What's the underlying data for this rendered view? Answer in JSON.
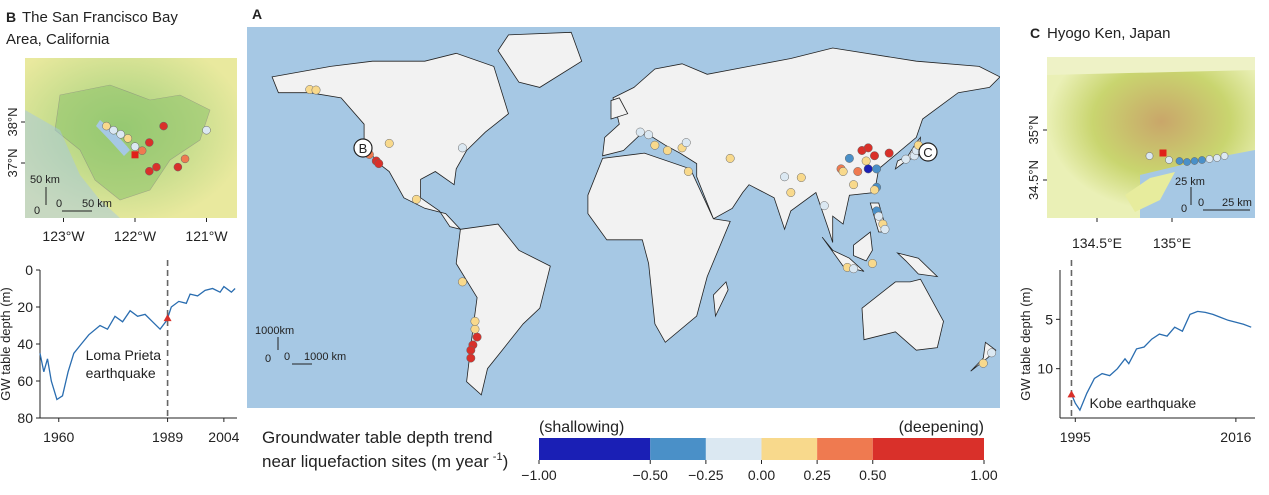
{
  "chart_data": [
    {
      "type": "line",
      "ylabel": "GW table depth (m)",
      "x": [
        1955,
        1956,
        1957,
        1958,
        1959.5,
        1961,
        1962.5,
        1964,
        1966,
        1968,
        1971,
        1973,
        1975,
        1977,
        1979,
        1981,
        1983,
        1985,
        1987,
        1988.5,
        1989,
        1990,
        1992,
        1994,
        1995,
        1997,
        1999,
        2001,
        2003,
        2004,
        2006,
        2007
      ],
      "values": [
        45,
        55,
        48,
        60,
        70,
        68,
        55,
        45,
        40,
        35,
        30,
        32,
        25,
        28,
        22,
        25,
        24,
        28,
        32,
        28,
        26,
        20,
        17,
        18,
        13,
        14,
        11,
        10,
        12,
        9,
        12,
        10
      ],
      "color": "#2a6db0",
      "xlim": [
        1955,
        2007.5
      ],
      "ylim": [
        0,
        80
      ],
      "y_inverted": true,
      "xticks": [
        1960,
        1989,
        2004
      ],
      "yticks": [
        0,
        20,
        40,
        60,
        80
      ],
      "event_x": 1989,
      "event_label": [
        "Loma Prieta",
        "earthquake"
      ],
      "marker": {
        "x": 1989,
        "y": 26,
        "color": "#d9302a"
      }
    },
    {
      "type": "line",
      "ylabel": "GW table depth (m)",
      "x": [
        1994.5,
        1995,
        1995.6,
        1996.5,
        1997.5,
        1998.5,
        1999.5,
        2000.5,
        2001.5,
        2002,
        2003,
        2004,
        2005,
        2006,
        2007,
        2008,
        2009,
        2010,
        2011,
        2012,
        2013,
        2014,
        2015,
        2016,
        2017,
        2018
      ],
      "values": [
        12.6,
        13.5,
        14.2,
        12.5,
        11,
        10.5,
        10.7,
        10,
        9,
        9.5,
        8,
        7.8,
        7,
        6.5,
        6.7,
        5.8,
        6.2,
        4.5,
        4.2,
        4.3,
        4.5,
        4.8,
        5.1,
        5.3,
        5.5,
        5.8
      ],
      "color": "#2a6db0",
      "xlim": [
        1993,
        2018.5
      ],
      "ylim": [
        0,
        15
      ],
      "y_inverted": true,
      "xticks": [
        1995,
        2016
      ],
      "yticks": [
        5,
        10
      ],
      "event_x": 1994.5,
      "event_label": [
        "Kobe earthquake"
      ],
      "marker": {
        "x": 1994.5,
        "y": 12.6,
        "color": "#d9302a"
      }
    }
  ],
  "panel_a": {
    "label": "A",
    "marker_b": "B",
    "marker_c": "C",
    "scale": {
      "vertical": "1000km",
      "zero_v": "0",
      "zero_h": "0",
      "horizontal": "1000 km"
    },
    "sites": [
      {
        "lon": -122.3,
        "lat": 37.8,
        "trend": 0.6
      },
      {
        "lon": -122,
        "lat": 37,
        "trend": 0.8
      },
      {
        "lon": -121.5,
        "lat": 36.5,
        "trend": 0.4
      },
      {
        "lon": -118.2,
        "lat": 34,
        "trend": 0.9
      },
      {
        "lon": -117,
        "lat": 33,
        "trend": 0.6
      },
      {
        "lon": -123,
        "lat": 39,
        "trend": 0.1
      },
      {
        "lon": -150,
        "lat": 61.2,
        "trend": 0.1
      },
      {
        "lon": -147,
        "lat": 61,
        "trend": 0.2
      },
      {
        "lon": -112,
        "lat": 40.7,
        "trend": 0.1
      },
      {
        "lon": -77,
        "lat": 39,
        "trend": -0.1
      },
      {
        "lon": -99,
        "lat": 19.4,
        "trend": 0.1
      },
      {
        "lon": -70,
        "lat": -33,
        "trend": 0.6
      },
      {
        "lon": -72,
        "lat": -36,
        "trend": 0.7
      },
      {
        "lon": -73,
        "lat": -38,
        "trend": 0.5
      },
      {
        "lon": -71,
        "lat": -30,
        "trend": 0.1
      },
      {
        "lon": -73,
        "lat": -41,
        "trend": 0.6
      },
      {
        "lon": -71,
        "lat": -27,
        "trend": 0.1
      },
      {
        "lon": -77,
        "lat": -12,
        "trend": 0.1
      },
      {
        "lon": 172,
        "lat": -43,
        "trend": 0.1
      },
      {
        "lon": 176,
        "lat": -39,
        "trend": -0.1
      },
      {
        "lon": 12,
        "lat": 44,
        "trend": -0.2
      },
      {
        "lon": 15,
        "lat": 40,
        "trend": 0.1
      },
      {
        "lon": 21,
        "lat": 38,
        "trend": 0.1
      },
      {
        "lon": 28,
        "lat": 39,
        "trend": 0.1
      },
      {
        "lon": 8,
        "lat": 45,
        "trend": -0.1
      },
      {
        "lon": 30,
        "lat": 41,
        "trend": -0.2
      },
      {
        "lon": 51,
        "lat": 35,
        "trend": 0.1
      },
      {
        "lon": 31,
        "lat": 30,
        "trend": 0.1
      },
      {
        "lon": 85,
        "lat": 27.7,
        "trend": 0.1
      },
      {
        "lon": 80,
        "lat": 22,
        "trend": 0.1
      },
      {
        "lon": 77,
        "lat": 28,
        "trend": -0.2
      },
      {
        "lon": 104,
        "lat": 31,
        "trend": 0.4
      },
      {
        "lon": 105,
        "lat": 30,
        "trend": 0.1
      },
      {
        "lon": 114,
        "lat": 38,
        "trend": 0.8
      },
      {
        "lon": 117,
        "lat": 39,
        "trend": 0.6
      },
      {
        "lon": 120,
        "lat": 36,
        "trend": 0.9
      },
      {
        "lon": 116,
        "lat": 34,
        "trend": 0.1
      },
      {
        "lon": 117,
        "lat": 31,
        "trend": -0.8
      },
      {
        "lon": 121,
        "lat": 31,
        "trend": -0.4
      },
      {
        "lon": 112,
        "lat": 30,
        "trend": 0.3
      },
      {
        "lon": 110,
        "lat": 25,
        "trend": 0.1
      },
      {
        "lon": 108,
        "lat": 35,
        "trend": -0.4
      },
      {
        "lon": 127,
        "lat": 37,
        "trend": 0.9
      },
      {
        "lon": 135,
        "lat": 34.7,
        "trend": -0.1
      },
      {
        "lon": 139,
        "lat": 36,
        "trend": -0.2
      },
      {
        "lon": 140,
        "lat": 38,
        "trend": -0.1
      },
      {
        "lon": 141,
        "lat": 40,
        "trend": 0.1
      },
      {
        "lon": 121,
        "lat": 24,
        "trend": -0.3
      },
      {
        "lon": 120,
        "lat": 23,
        "trend": 0.1
      },
      {
        "lon": 121,
        "lat": 15,
        "trend": -0.3
      },
      {
        "lon": 122,
        "lat": 13,
        "trend": -0.1
      },
      {
        "lon": 124,
        "lat": 10,
        "trend": 0.1
      },
      {
        "lon": 125,
        "lat": 8,
        "trend": -0.1
      },
      {
        "lon": 107,
        "lat": -6.5,
        "trend": 0.1
      },
      {
        "lon": 110,
        "lat": -7,
        "trend": -0.1
      },
      {
        "lon": 119,
        "lat": -5,
        "trend": 0.1
      },
      {
        "lon": 96,
        "lat": 17,
        "trend": -0.1
      }
    ]
  },
  "panel_b": {
    "label": "B",
    "title_lines": [
      "The San Francisco Bay",
      "Area, California"
    ],
    "lat_ticks": [
      "38°N",
      "37°N"
    ],
    "lon_ticks": [
      "123°W",
      "122°W",
      "121°W"
    ],
    "scale": {
      "vertical": "50 km",
      "zero_v": "0",
      "zero_h": "0",
      "horizontal": "50 km"
    },
    "epicenter": {
      "lon": -122,
      "lat": 37.2
    },
    "sites": [
      {
        "lon": -122.3,
        "lat": 37.8,
        "trend": -0.1
      },
      {
        "lon": -122.2,
        "lat": 37.7,
        "trend": -0.2
      },
      {
        "lon": -122.1,
        "lat": 37.6,
        "trend": 0.1
      },
      {
        "lon": -122,
        "lat": 37.4,
        "trend": -0.1
      },
      {
        "lon": -121.9,
        "lat": 37.3,
        "trend": 0.3
      },
      {
        "lon": -122.4,
        "lat": 37.9,
        "trend": 0.1
      },
      {
        "lon": -121.8,
        "lat": 37.5,
        "trend": 0.6
      },
      {
        "lon": -121.7,
        "lat": 36.9,
        "trend": 0.7
      },
      {
        "lon": -121.8,
        "lat": 36.8,
        "trend": 0.6
      },
      {
        "lon": -121.4,
        "lat": 36.9,
        "trend": 0.8
      },
      {
        "lon": -121.3,
        "lat": 37.1,
        "trend": 0.4
      },
      {
        "lon": -121,
        "lat": 37.8,
        "trend": -0.1
      },
      {
        "lon": -121.6,
        "lat": 37.9,
        "trend": 0.6
      }
    ]
  },
  "panel_c": {
    "label": "C",
    "title": "Hyogo Ken, Japan",
    "lat_ticks": [
      "35°N",
      "34.5°N"
    ],
    "lon_ticks": [
      "134.5°E",
      "135°E"
    ],
    "scale": {
      "vertical": "25 km",
      "zero_v": "0",
      "zero_h": "0",
      "horizontal": "25 km"
    },
    "epicenter": {
      "lon": 134.94,
      "lat": 34.77
    },
    "sites": [
      {
        "lon": 134.85,
        "lat": 34.74,
        "trend": -0.1
      },
      {
        "lon": 134.98,
        "lat": 34.7,
        "trend": -0.2
      },
      {
        "lon": 135.05,
        "lat": 34.69,
        "trend": -0.3
      },
      {
        "lon": 135.1,
        "lat": 34.68,
        "trend": -0.3
      },
      {
        "lon": 135.15,
        "lat": 34.69,
        "trend": -0.4
      },
      {
        "lon": 135.2,
        "lat": 34.7,
        "trend": -0.3
      },
      {
        "lon": 135.25,
        "lat": 34.71,
        "trend": -0.2
      },
      {
        "lon": 135.3,
        "lat": 34.72,
        "trend": -0.1
      },
      {
        "lon": 135.35,
        "lat": 34.74,
        "trend": -0.2
      }
    ]
  },
  "colorbar": {
    "title_line1": "Groundwater table depth trend",
    "title_line2": "near liquefaction sites (m year",
    "title_sup": "-1",
    "title_end": ")",
    "left_label": "(shallowing)",
    "right_label": "(deepening)",
    "colors": [
      "#1a1fb5",
      "#4a90c8",
      "#dbe8f2",
      "#f8d98c",
      "#ef7a50",
      "#d9302a"
    ],
    "ticks": [
      {
        "value": -1,
        "label": "−1.00"
      },
      {
        "value": -0.5,
        "label": "−0.50"
      },
      {
        "value": -0.25,
        "label": "−0.25"
      },
      {
        "value": 0,
        "label": "0.00"
      },
      {
        "value": 0.25,
        "label": "0.25"
      },
      {
        "value": 0.5,
        "label": "0.50"
      },
      {
        "value": 1,
        "label": "1.00"
      }
    ]
  }
}
